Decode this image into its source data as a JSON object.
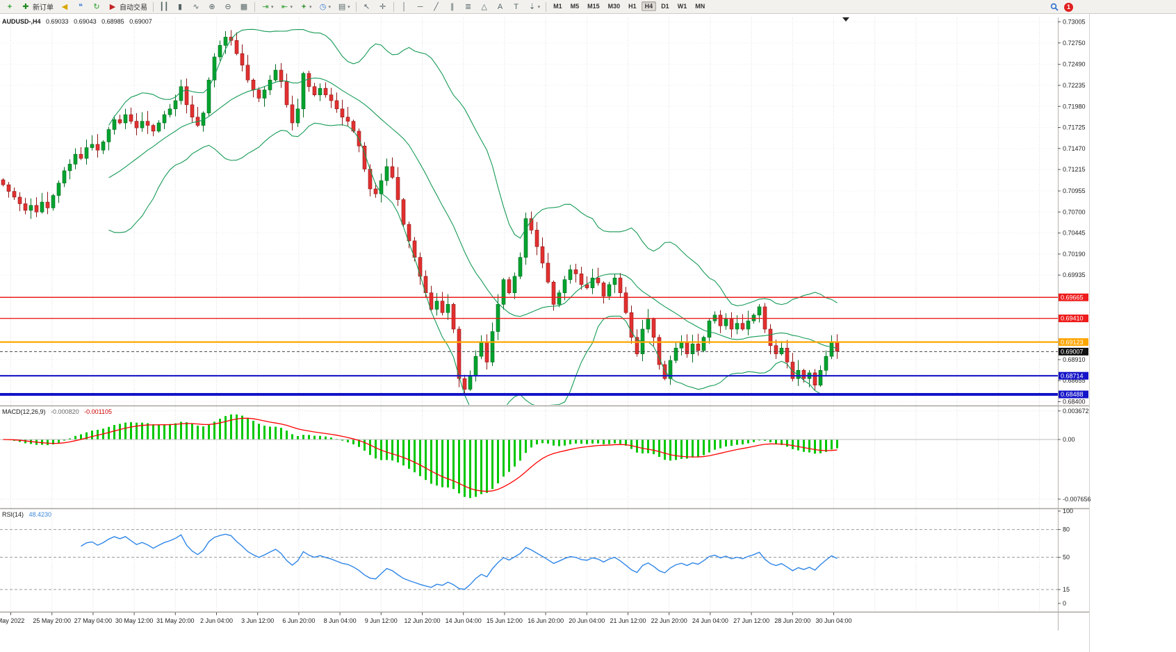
{
  "toolbar": {
    "new_order_label": "新订单",
    "auto_trading_label": "自动交易",
    "timeframes": [
      "M1",
      "M5",
      "M15",
      "M30",
      "H1",
      "H4",
      "D1",
      "W1",
      "MN"
    ],
    "active_timeframe": "H4",
    "notification_badge": "1"
  },
  "chart": {
    "symbol_header": "AUDUSD-,H4",
    "open": "0.69033",
    "high": "0.69043",
    "low": "0.68985",
    "close": "0.69007",
    "axis": {
      "price_top": 0.73005,
      "price_bottom": 0.684
    },
    "price_ticks": [
      {
        "label": "0.73005",
        "price": 0.73005
      },
      {
        "label": "0.72750",
        "price": 0.7275
      },
      {
        "label": "0.72490",
        "price": 0.7249
      },
      {
        "label": "0.72235",
        "price": 0.72235
      },
      {
        "label": "0.71980",
        "price": 0.7198
      },
      {
        "label": "0.71725",
        "price": 0.71725
      },
      {
        "label": "0.71470",
        "price": 0.7147
      },
      {
        "label": "0.71215",
        "price": 0.71215
      },
      {
        "label": "0.70955",
        "price": 0.70955
      },
      {
        "label": "0.70700",
        "price": 0.707
      },
      {
        "label": "0.70445",
        "price": 0.70445
      },
      {
        "label": "0.70190",
        "price": 0.7019
      },
      {
        "label": "0.69935",
        "price": 0.69935
      },
      {
        "label": "0.68910",
        "price": 0.6891
      },
      {
        "label": "0.68655",
        "price": 0.68655
      },
      {
        "label": "0.68400",
        "price": 0.684
      }
    ],
    "levels": [
      {
        "label": "0.69665",
        "price": 0.69665,
        "color": "#ee1c1c",
        "width": 1.4
      },
      {
        "label": "0.69410",
        "price": 0.6941,
        "color": "#ee1c1c",
        "width": 1.4
      },
      {
        "label": "0.69123",
        "price": 0.69123,
        "color": "#ffa500",
        "width": 2.2
      },
      {
        "label": "0.68714",
        "price": 0.68714,
        "color": "#1414c8",
        "width": 2.2
      },
      {
        "label": "0.68488",
        "price": 0.68488,
        "color": "#1414c8",
        "width": 4
      }
    ],
    "current_price": {
      "label": "0.69007",
      "price": 0.69007,
      "color": "#111111"
    },
    "candles": {
      "closes": [
        0.7103,
        0.7095,
        0.7088,
        0.708,
        0.7072,
        0.7078,
        0.707,
        0.7082,
        0.7075,
        0.709,
        0.7105,
        0.712,
        0.7128,
        0.714,
        0.7135,
        0.7148,
        0.7152,
        0.7145,
        0.7155,
        0.717,
        0.7182,
        0.7178,
        0.7188,
        0.718,
        0.7172,
        0.718,
        0.7175,
        0.7168,
        0.7178,
        0.7188,
        0.7195,
        0.7205,
        0.7222,
        0.72,
        0.7185,
        0.7175,
        0.719,
        0.723,
        0.7258,
        0.7272,
        0.7282,
        0.7278,
        0.7262,
        0.7248,
        0.723,
        0.7218,
        0.7208,
        0.7218,
        0.723,
        0.7242,
        0.7228,
        0.72,
        0.7178,
        0.7195,
        0.7238,
        0.7222,
        0.7212,
        0.722,
        0.7212,
        0.7205,
        0.7195,
        0.7185,
        0.718,
        0.7168,
        0.715,
        0.7122,
        0.7098,
        0.7092,
        0.7108,
        0.7125,
        0.7112,
        0.7085,
        0.7055,
        0.7035,
        0.7015,
        0.6992,
        0.6972,
        0.6952,
        0.6962,
        0.6948,
        0.6958,
        0.6928,
        0.6868,
        0.6855,
        0.6872,
        0.6895,
        0.6912,
        0.6888,
        0.6925,
        0.6958,
        0.6988,
        0.6972,
        0.6992,
        0.7015,
        0.7062,
        0.7048,
        0.7028,
        0.7008,
        0.6985,
        0.6958,
        0.6972,
        0.6988,
        0.7,
        0.6995,
        0.6982,
        0.6978,
        0.699,
        0.6984,
        0.6968,
        0.6982,
        0.699,
        0.6972,
        0.6948,
        0.6918,
        0.6898,
        0.6928,
        0.694,
        0.6918,
        0.6885,
        0.6868,
        0.689,
        0.6905,
        0.6912,
        0.6898,
        0.691,
        0.6902,
        0.6918,
        0.6938,
        0.6945,
        0.6932,
        0.694,
        0.6928,
        0.6935,
        0.6928,
        0.6938,
        0.6945,
        0.6955,
        0.6928,
        0.6908,
        0.6898,
        0.6905,
        0.6888,
        0.6868,
        0.6878,
        0.6868,
        0.6875,
        0.686,
        0.6878,
        0.6895,
        0.6912,
        0.6901
      ],
      "up_color": "#00a32e",
      "up_border": "#006b1e",
      "down_color": "#e23030",
      "down_border": "#8f1414"
    },
    "bollinger": {
      "period": 20,
      "deviation": 2,
      "color": "#159a55"
    }
  },
  "macd": {
    "title": "MACD(12,26,9)",
    "value_main": "-0.000820",
    "value_signal": "-0.001105",
    "fast": 12,
    "slow": 26,
    "signal": 9,
    "axis_labels": [
      {
        "label": "0.003672",
        "value": 0.003672
      },
      {
        "label": "0.00",
        "value": 0
      },
      {
        "label": "-0.007656",
        "value": -0.007656
      }
    ],
    "hist_color": "#00c800",
    "signal_color": "#ff0000"
  },
  "rsi": {
    "title": "RSI(14)",
    "value": "48.4230",
    "period": 14,
    "axis_labels": [
      {
        "label": "100",
        "value": 100
      },
      {
        "label": "80",
        "value": 80
      },
      {
        "label": "50",
        "value": 50
      },
      {
        "label": "15",
        "value": 15
      },
      {
        "label": "0",
        "value": 0
      }
    ],
    "dashed_levels": [
      80,
      50,
      15
    ],
    "color": "#2e86e8"
  },
  "time_axis": {
    "labels": [
      "May 2022",
      "25 May 20:00",
      "27 May 04:00",
      "30 May 12:00",
      "31 May 20:00",
      "2 Jun 04:00",
      "3 Jun 12:00",
      "6 Jun 20:00",
      "8 Jun 04:00",
      "9 Jun 12:00",
      "12 Jun 20:00",
      "14 Jun 04:00",
      "15 Jun 12:00",
      "16 Jun 20:00",
      "20 Jun 04:00",
      "21 Jun 12:00",
      "22 Jun 20:00",
      "24 Jun 04:00",
      "27 Jun 12:00",
      "28 Jun 20:00",
      "30 Jun 04:00"
    ]
  }
}
